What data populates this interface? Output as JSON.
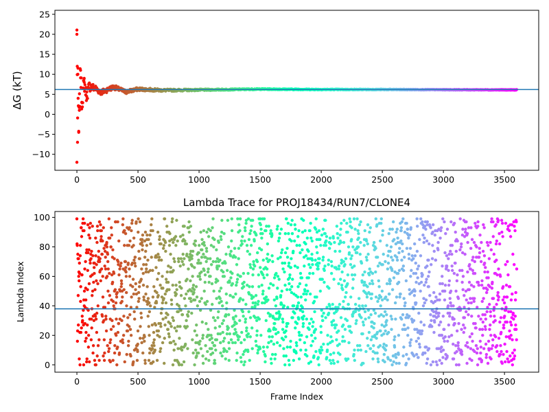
{
  "chart_data": [
    {
      "type": "scatter",
      "title": "",
      "xlabel": "",
      "ylabel": "ΔG (kT)",
      "xlim": [
        -180,
        3780
      ],
      "ylim": [
        -14,
        26
      ],
      "xticks": [
        0,
        500,
        1000,
        1500,
        2000,
        2500,
        3000,
        3500
      ],
      "yticks": [
        -10,
        -5,
        0,
        5,
        10,
        15,
        20,
        25
      ],
      "x_range": [
        0,
        3600
      ],
      "colormap": "rainbow (red at frame 0 to violet at last frame)",
      "hline": 6.2,
      "hline_color": "#1f77b4",
      "trend": {
        "description": "converging running estimate: values scatter widely (about -12 to 20) over the first ~60 frames, then settle toward ~6.2",
        "points": [
          [
            0,
            20
          ],
          [
            0,
            -12
          ],
          [
            3,
            12
          ],
          [
            5,
            -7
          ],
          [
            8,
            10
          ],
          [
            10,
            4
          ],
          [
            15,
            -4.5
          ],
          [
            20,
            1
          ],
          [
            30,
            11
          ],
          [
            40,
            3
          ],
          [
            60,
            8
          ],
          [
            80,
            4.5
          ],
          [
            100,
            7
          ],
          [
            150,
            6.5
          ],
          [
            200,
            5.5
          ],
          [
            300,
            6.8
          ],
          [
            400,
            5.6
          ],
          [
            500,
            6.3
          ],
          [
            700,
            6.0
          ],
          [
            1000,
            6.1
          ],
          [
            1500,
            6.3
          ],
          [
            2000,
            6.2
          ],
          [
            2500,
            6.2
          ],
          [
            3000,
            6.15
          ],
          [
            3600,
            6.1
          ]
        ]
      }
    },
    {
      "type": "scatter",
      "title": "Lambda Trace for PROJ18434/RUN7/CLONE4",
      "xlabel": "Frame Index",
      "ylabel": "Lambda Index",
      "xlim": [
        -180,
        3780
      ],
      "ylim": [
        -5,
        104
      ],
      "xticks": [
        0,
        500,
        1000,
        1500,
        2000,
        2500,
        3000,
        3500
      ],
      "yticks": [
        0,
        20,
        40,
        60,
        80,
        100
      ],
      "x_range": [
        0,
        3600
      ],
      "y_range": [
        0,
        99
      ],
      "point_count": 2400,
      "colormap": "rainbow (red at frame 0 to violet at last frame)",
      "hline": 38,
      "hline_color": "#1f77b4",
      "description": "lambda index values spread roughly uniformly between 0 and 99 across all frames"
    }
  ]
}
